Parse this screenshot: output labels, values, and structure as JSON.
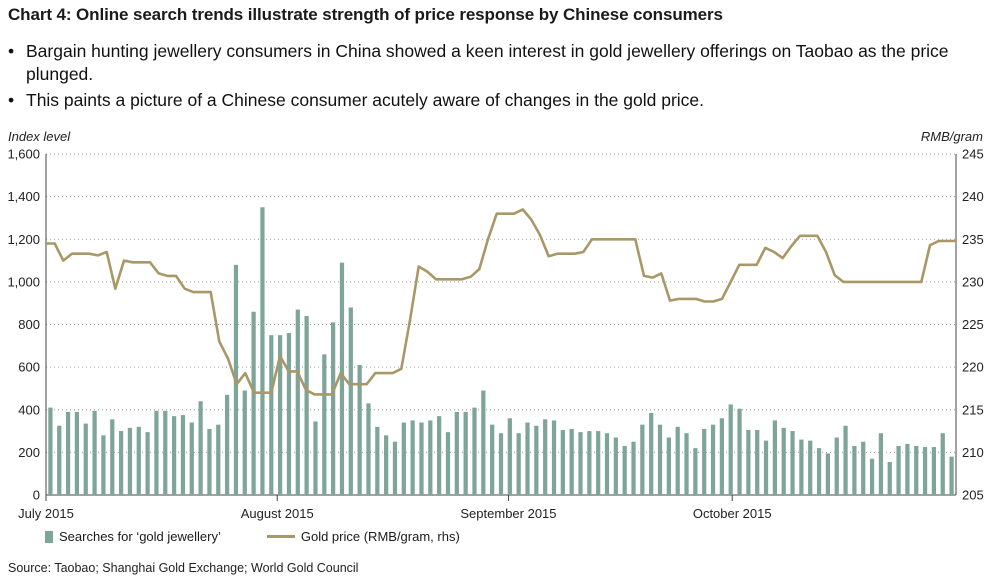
{
  "header": {
    "title": "Chart 4: Online search trends illustrate strength of price response by Chinese consumers",
    "bullets": [
      "Bargain hunting jewellery consumers in China showed a keen interest in gold jewellery offerings on Taobao as the price plunged.",
      "This paints a picture of a Chinese consumer acutely aware of changes in the gold price."
    ]
  },
  "footer": {
    "source": "Source: Taobao; Shanghai Gold Exchange; World Gold Council"
  },
  "chart_data": {
    "type": "bar",
    "ylabel": "Index level",
    "ylabel_right": "RMB/gram",
    "ylim": [
      0,
      1600
    ],
    "ylim_right": [
      205,
      245
    ],
    "yticks": [
      "0",
      "200",
      "400",
      "600",
      "800",
      "1,000",
      "1,200",
      "1,400",
      "1,600"
    ],
    "yticks_right": [
      "205",
      "210",
      "215",
      "220",
      "225",
      "230",
      "235",
      "240",
      "245"
    ],
    "x_start": "2015-07-01",
    "x_end": "2015-10-31",
    "xtick_labels": [
      {
        "label": "July 2015",
        "date": "2015-07-01"
      },
      {
        "label": "August 2015",
        "date": "2015-08-01"
      },
      {
        "label": "September 2015",
        "date": "2015-09-01"
      },
      {
        "label": "October 2015",
        "date": "2015-10-01"
      }
    ],
    "grid": "horizontal dotted",
    "legend_position": "bottom-left",
    "series": [
      {
        "name": "Searches for ‘gold jewellery’",
        "type": "bar",
        "axis": "left",
        "color": "#7fa59a",
        "values": [
          410,
          325,
          390,
          390,
          335,
          395,
          280,
          355,
          300,
          315,
          320,
          295,
          395,
          395,
          370,
          375,
          340,
          440,
          310,
          330,
          470,
          1080,
          490,
          860,
          1350,
          750,
          750,
          760,
          870,
          840,
          345,
          660,
          810,
          1090,
          880,
          610,
          430,
          320,
          280,
          250,
          340,
          350,
          340,
          350,
          370,
          295,
          390,
          390,
          410,
          490,
          330,
          290,
          360,
          290,
          340,
          325,
          355,
          350,
          305,
          310,
          295,
          300,
          300,
          290,
          270,
          230,
          250,
          330,
          385,
          330,
          270,
          320,
          290,
          220,
          310,
          330,
          360,
          425,
          405,
          305,
          305,
          255,
          350,
          315,
          300,
          260,
          255,
          220,
          195,
          270,
          325,
          230,
          250,
          170,
          290,
          155,
          230,
          240,
          230,
          225,
          225,
          290,
          180
        ]
      },
      {
        "name": "Gold price (RMB/gram, rhs)",
        "type": "line",
        "axis": "right",
        "color": "#a99867",
        "values": [
          234.5,
          234.5,
          232.5,
          233.3,
          233.3,
          233.3,
          233.1,
          233.5,
          229.2,
          232.5,
          232.3,
          232.3,
          232.3,
          231.0,
          230.7,
          230.7,
          229.2,
          228.8,
          228.8,
          228.8,
          223.0,
          221.0,
          218.0,
          219.3,
          217.0,
          217.0,
          217.0,
          221.3,
          219.5,
          219.5,
          217.3,
          216.8,
          216.8,
          216.8,
          219.3,
          218.0,
          218.0,
          218.0,
          219.3,
          219.3,
          219.3,
          219.8,
          225.5,
          231.8,
          231.2,
          230.3,
          230.3,
          230.3,
          230.3,
          230.6,
          231.5,
          235.0,
          238.0,
          238.0,
          238.0,
          238.5,
          237.3,
          235.5,
          233.0,
          233.3,
          233.3,
          233.3,
          233.5,
          235.0,
          235.0,
          235.0,
          235.0,
          235.0,
          235.0,
          230.7,
          230.5,
          231.0,
          227.8,
          228.0,
          228.0,
          228.0,
          227.7,
          227.7,
          228.0,
          230.0,
          232.0,
          232.0,
          232.0,
          234.0,
          233.5,
          232.8,
          234.2,
          235.4,
          235.4,
          235.4,
          233.5,
          230.8,
          230.0,
          230.0,
          230.0,
          230.0,
          230.0,
          230.0,
          230.0,
          230.0,
          230.0,
          230.0,
          234.3,
          234.8,
          234.8,
          234.8
        ]
      }
    ]
  }
}
